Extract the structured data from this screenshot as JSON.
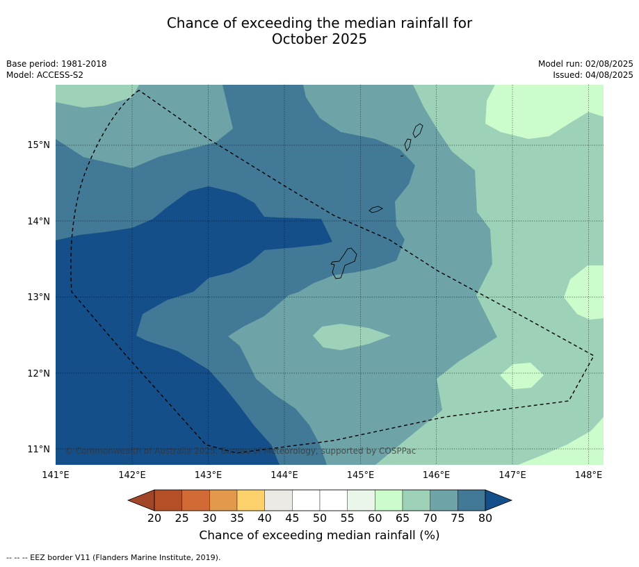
{
  "title_line1": "Chance of exceeding the median rainfall for",
  "title_line2": "October 2025",
  "meta_left": {
    "line1": "Base period: 1981-2018",
    "line2": "Model: ACCESS-S2"
  },
  "meta_right": {
    "line1": "Model run: 02/08/2025",
    "line2": "Issued: 04/08/2025"
  },
  "copyright": "© Commonwealth of Australia 2025, Bureau of Meteorology, supported by COSPPac",
  "lon_labels": [
    "141°E",
    "142°E",
    "143°E",
    "144°E",
    "145°E",
    "146°E",
    "147°E",
    "148°E"
  ],
  "lat_labels": [
    "15°N",
    "14°N",
    "13°N",
    "12°N",
    "11°N"
  ],
  "colorbar": {
    "title": "Chance of exceeding median rainfall (%)",
    "ticks": [
      "20",
      "25",
      "30",
      "35",
      "40",
      "45",
      "50",
      "55",
      "60",
      "65",
      "70",
      "75",
      "80"
    ],
    "colors": [
      "#b54f28",
      "#d16a34",
      "#e3994b",
      "#fcd06b",
      "#ede9e4",
      "#ffffff",
      "#ffffff",
      "#eaf6ea",
      "#ccfccc",
      "#9dd1b8",
      "#6ea4a8",
      "#427996"
    ],
    "under_color": "#a2462a",
    "over_color": "#154f8a"
  },
  "legend_note": "-- -- -- EEZ border V11 (Flanders Marine Institute, 2019)."
}
